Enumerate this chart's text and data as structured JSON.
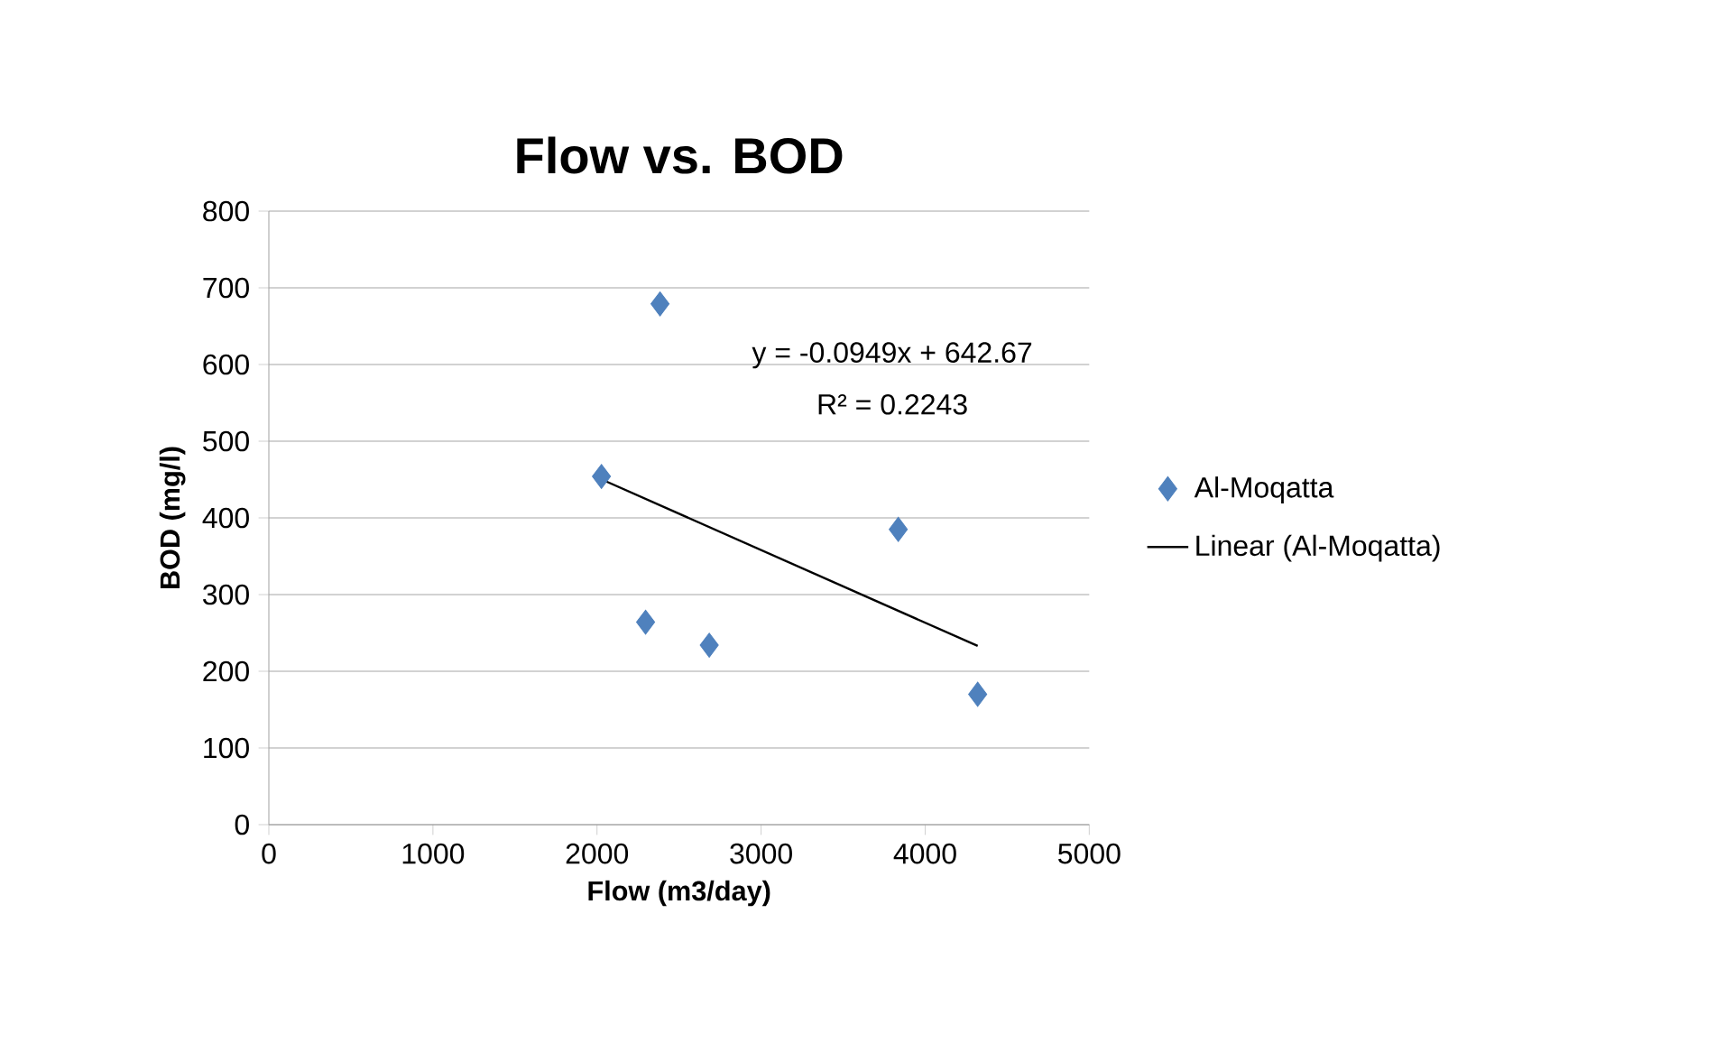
{
  "chart_data": {
    "type": "scatter",
    "title": "Flow vs. BOD",
    "xlabel": "Flow (m3/day)",
    "ylabel": "BOD (mg/l)",
    "xlim": [
      0,
      5000
    ],
    "xticks": [
      0,
      1000,
      2000,
      3000,
      4000,
      5000
    ],
    "ylim": [
      0,
      800
    ],
    "yticks": [
      0,
      100,
      200,
      300,
      400,
      500,
      600,
      700,
      800
    ],
    "grid": "y",
    "legend": "right",
    "annotations": [
      "y = -0.0949x + 642.67",
      "R² = 0.2243"
    ],
    "series": [
      {
        "name": "Al-Moqatta",
        "color": "#4f81bd",
        "marker": "diamond",
        "x": [
          2027,
          2384,
          2296,
          2684,
          3836,
          4320
        ],
        "values": [
          454,
          679,
          264,
          234,
          385,
          170
        ]
      },
      {
        "name": "Linear (Al-Moqatta)",
        "type": "line",
        "color": "#000000",
        "marker": "none",
        "x": [
          2030,
          4320
        ],
        "values": [
          450,
          233
        ]
      }
    ]
  }
}
